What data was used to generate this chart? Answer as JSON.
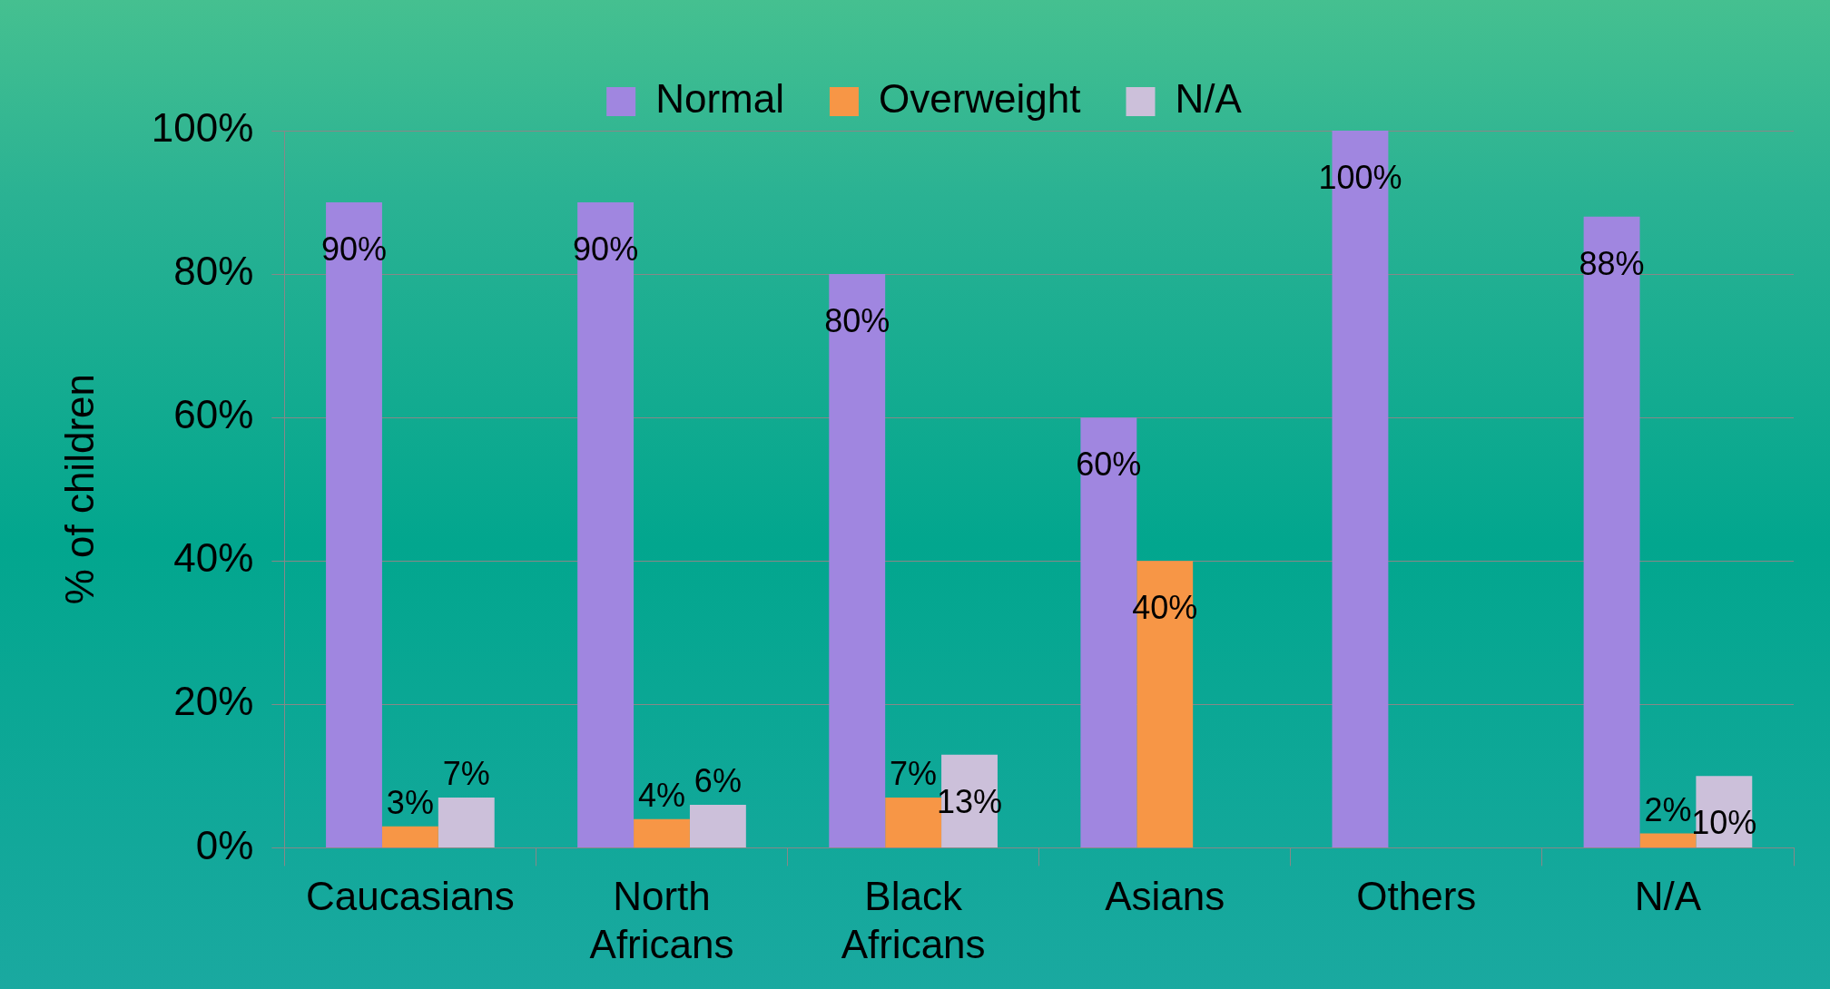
{
  "chart_data": {
    "type": "bar",
    "ylabel": "% of children",
    "categories": [
      "Caucasians",
      "North Africans",
      "Black Africans",
      "Asians",
      "Others",
      "N/A"
    ],
    "series": [
      {
        "name": "Normal",
        "color": "#a086e0",
        "values": [
          90,
          90,
          80,
          60,
          100,
          88
        ],
        "value_labels": [
          "90%",
          "90%",
          "80%",
          "60%",
          "100%",
          "88%"
        ]
      },
      {
        "name": "Overweight",
        "color": "#f79646",
        "values": [
          3,
          4,
          7,
          40,
          null,
          2
        ],
        "value_labels": [
          "3%",
          "4%",
          "7%",
          "40%",
          null,
          "2%"
        ]
      },
      {
        "name": "N/A",
        "color": "#ccc0da",
        "values": [
          7,
          6,
          13,
          null,
          null,
          10
        ],
        "value_labels": [
          "7%",
          "6%",
          "13%",
          null,
          null,
          "10%"
        ]
      }
    ],
    "ylim": [
      0,
      100
    ],
    "yticks": [
      {
        "value": 0,
        "label": "0%"
      },
      {
        "value": 20,
        "label": "20%"
      },
      {
        "value": 40,
        "label": "40%"
      },
      {
        "value": 60,
        "label": "60%"
      },
      {
        "value": 80,
        "label": "80%"
      },
      {
        "value": 100,
        "label": "100%"
      }
    ],
    "grid": "y",
    "legend": "top"
  }
}
